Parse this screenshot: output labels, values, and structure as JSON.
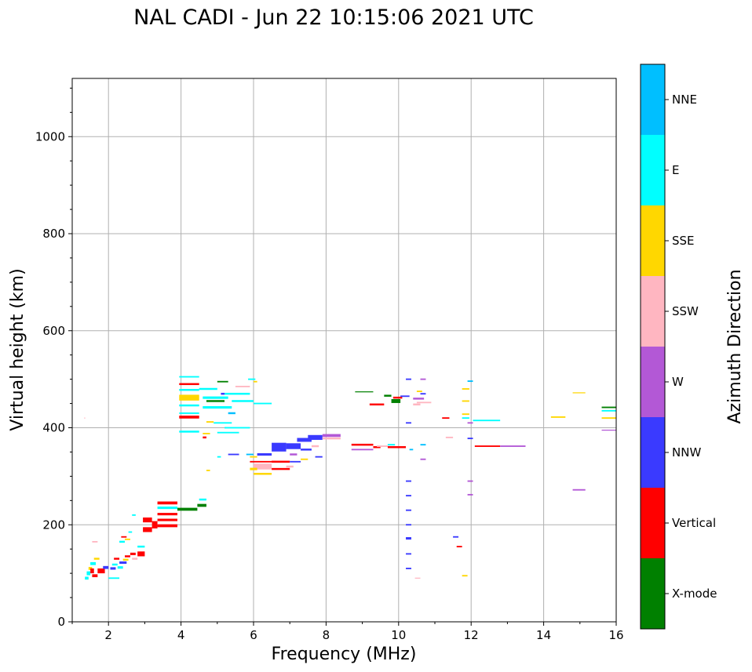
{
  "chart_data": {
    "type": "scatter",
    "title": "NAL CADI - Jun 22 10:15:06 2021 UTC",
    "xlabel": "Frequency (MHz)",
    "ylabel": "Virtual height (km)",
    "xlim": [
      1,
      16
    ],
    "ylim": [
      0,
      1120
    ],
    "xticks": [
      2,
      4,
      6,
      8,
      10,
      12,
      14,
      16
    ],
    "yticks": [
      0,
      200,
      400,
      600,
      800,
      1000
    ],
    "grid": true,
    "colorbar": {
      "label": "Azimuth Direction",
      "categories": [
        {
          "name": "X-mode",
          "color": "#008000"
        },
        {
          "name": "Vertical",
          "color": "#ff0000"
        },
        {
          "name": "NNW",
          "color": "#3a3aff"
        },
        {
          "name": "W",
          "color": "#b358d6"
        },
        {
          "name": "SSW",
          "color": "#ffb6c1"
        },
        {
          "name": "SSE",
          "color": "#ffd700"
        },
        {
          "name": "E",
          "color": "#00ffff"
        },
        {
          "name": "NNE",
          "color": "#00bfff"
        }
      ]
    },
    "echoes": [
      {
        "x0": 1.33,
        "x1": 1.36,
        "y": 420,
        "h": 2,
        "c": "SSW"
      },
      {
        "x0": 1.35,
        "x1": 1.45,
        "y": 90,
        "h": 6,
        "c": "E"
      },
      {
        "x0": 1.4,
        "x1": 1.5,
        "y": 100,
        "h": 8,
        "c": "E"
      },
      {
        "x0": 1.45,
        "x1": 1.55,
        "y": 110,
        "h": 6,
        "c": "SSE"
      },
      {
        "x0": 1.5,
        "x1": 1.6,
        "y": 105,
        "h": 10,
        "c": "Vertical"
      },
      {
        "x0": 1.5,
        "x1": 1.65,
        "y": 120,
        "h": 6,
        "c": "E"
      },
      {
        "x0": 1.55,
        "x1": 1.7,
        "y": 95,
        "h": 6,
        "c": "Vertical"
      },
      {
        "x0": 1.6,
        "x1": 1.75,
        "y": 130,
        "h": 4,
        "c": "SSE"
      },
      {
        "x0": 1.55,
        "x1": 1.7,
        "y": 165,
        "h": 3,
        "c": "SSW"
      },
      {
        "x0": 1.7,
        "x1": 1.9,
        "y": 105,
        "h": 10,
        "c": "Vertical"
      },
      {
        "x0": 1.85,
        "x1": 2.0,
        "y": 112,
        "h": 6,
        "c": "NNW"
      },
      {
        "x0": 2.0,
        "x1": 2.3,
        "y": 90,
        "h": 3,
        "c": "E"
      },
      {
        "x0": 2.05,
        "x1": 2.2,
        "y": 110,
        "h": 5,
        "c": "NNW"
      },
      {
        "x0": 2.1,
        "x1": 2.25,
        "y": 118,
        "h": 4,
        "c": "E"
      },
      {
        "x0": 2.15,
        "x1": 2.3,
        "y": 130,
        "h": 4,
        "c": "Vertical"
      },
      {
        "x0": 2.25,
        "x1": 2.4,
        "y": 112,
        "h": 5,
        "c": "E"
      },
      {
        "x0": 2.3,
        "x1": 2.5,
        "y": 122,
        "h": 5,
        "c": "NNW"
      },
      {
        "x0": 2.4,
        "x1": 2.55,
        "y": 128,
        "h": 4,
        "c": "SSE"
      },
      {
        "x0": 2.45,
        "x1": 2.6,
        "y": 135,
        "h": 4,
        "c": "Vertical"
      },
      {
        "x0": 2.3,
        "x1": 2.45,
        "y": 165,
        "h": 4,
        "c": "E"
      },
      {
        "x0": 2.35,
        "x1": 2.5,
        "y": 175,
        "h": 3,
        "c": "Vertical"
      },
      {
        "x0": 2.45,
        "x1": 2.6,
        "y": 170,
        "h": 3,
        "c": "SSE"
      },
      {
        "x0": 2.55,
        "x1": 2.65,
        "y": 185,
        "h": 3,
        "c": "E"
      },
      {
        "x0": 2.6,
        "x1": 2.75,
        "y": 140,
        "h": 5,
        "c": "Vertical"
      },
      {
        "x0": 2.65,
        "x1": 2.8,
        "y": 130,
        "h": 4,
        "c": "SSW"
      },
      {
        "x0": 2.65,
        "x1": 2.75,
        "y": 220,
        "h": 3,
        "c": "E"
      },
      {
        "x0": 2.8,
        "x1": 3.0,
        "y": 140,
        "h": 10,
        "c": "Vertical"
      },
      {
        "x0": 2.8,
        "x1": 3.0,
        "y": 155,
        "h": 4,
        "c": "E"
      },
      {
        "x0": 2.95,
        "x1": 3.2,
        "y": 190,
        "h": 10,
        "c": "Vertical"
      },
      {
        "x0": 2.95,
        "x1": 3.2,
        "y": 210,
        "h": 10,
        "c": "Vertical"
      },
      {
        "x0": 3.2,
        "x1": 3.35,
        "y": 200,
        "h": 15,
        "c": "Vertical"
      },
      {
        "x0": 3.35,
        "x1": 3.9,
        "y": 198,
        "h": 6,
        "c": "Vertical"
      },
      {
        "x0": 3.35,
        "x1": 3.9,
        "y": 210,
        "h": 5,
        "c": "Vertical"
      },
      {
        "x0": 3.35,
        "x1": 3.9,
        "y": 222,
        "h": 5,
        "c": "Vertical"
      },
      {
        "x0": 3.35,
        "x1": 3.9,
        "y": 235,
        "h": 5,
        "c": "E"
      },
      {
        "x0": 3.35,
        "x1": 3.9,
        "y": 245,
        "h": 6,
        "c": "Vertical"
      },
      {
        "x0": 3.9,
        "x1": 4.45,
        "y": 232,
        "h": 6,
        "c": "X-mode"
      },
      {
        "x0": 4.45,
        "x1": 4.7,
        "y": 240,
        "h": 6,
        "c": "X-mode"
      },
      {
        "x0": 4.5,
        "x1": 4.7,
        "y": 252,
        "h": 4,
        "c": "E"
      },
      {
        "x0": 3.95,
        "x1": 4.5,
        "y": 505,
        "h": 3,
        "c": "E"
      },
      {
        "x0": 3.95,
        "x1": 4.5,
        "y": 490,
        "h": 4,
        "c": "Vertical"
      },
      {
        "x0": 3.95,
        "x1": 4.5,
        "y": 478,
        "h": 4,
        "c": "E"
      },
      {
        "x0": 3.95,
        "x1": 4.5,
        "y": 462,
        "h": 12,
        "c": "SSE"
      },
      {
        "x0": 3.95,
        "x1": 4.5,
        "y": 446,
        "h": 4,
        "c": "E"
      },
      {
        "x0": 3.95,
        "x1": 4.5,
        "y": 422,
        "h": 6,
        "c": "Vertical"
      },
      {
        "x0": 3.95,
        "x1": 4.5,
        "y": 430,
        "h": 3,
        "c": "E"
      },
      {
        "x0": 3.95,
        "x1": 4.5,
        "y": 392,
        "h": 4,
        "c": "E"
      },
      {
        "x0": 4.5,
        "x1": 5.0,
        "y": 480,
        "h": 4,
        "c": "E"
      },
      {
        "x0": 4.6,
        "x1": 5.3,
        "y": 462,
        "h": 5,
        "c": "E"
      },
      {
        "x0": 4.7,
        "x1": 5.2,
        "y": 455,
        "h": 4,
        "c": "X-mode"
      },
      {
        "x0": 4.6,
        "x1": 5.4,
        "y": 442,
        "h": 5,
        "c": "E"
      },
      {
        "x0": 5.2,
        "x1": 5.9,
        "y": 470,
        "h": 4,
        "c": "E"
      },
      {
        "x0": 5.4,
        "x1": 6.0,
        "y": 455,
        "h": 4,
        "c": "E"
      },
      {
        "x0": 5.0,
        "x1": 5.3,
        "y": 495,
        "h": 3,
        "c": "X-mode"
      },
      {
        "x0": 5.3,
        "x1": 5.5,
        "y": 430,
        "h": 4,
        "c": "NNE"
      },
      {
        "x0": 5.5,
        "x1": 5.9,
        "y": 485,
        "h": 3,
        "c": "SSW"
      },
      {
        "x0": 5.1,
        "x1": 5.2,
        "y": 470,
        "h": 4,
        "c": "NNW"
      },
      {
        "x0": 4.9,
        "x1": 5.4,
        "y": 410,
        "h": 3,
        "c": "E"
      },
      {
        "x0": 5.2,
        "x1": 5.9,
        "y": 400,
        "h": 3,
        "c": "E"
      },
      {
        "x0": 5.0,
        "x1": 5.6,
        "y": 390,
        "h": 3,
        "c": "E"
      },
      {
        "x0": 4.7,
        "x1": 4.9,
        "y": 412,
        "h": 3,
        "c": "SSE"
      },
      {
        "x0": 4.6,
        "x1": 4.8,
        "y": 388,
        "h": 3,
        "c": "SSE"
      },
      {
        "x0": 4.6,
        "x1": 4.7,
        "y": 380,
        "h": 4,
        "c": "Vertical"
      },
      {
        "x0": 6.0,
        "x1": 6.5,
        "y": 450,
        "h": 3,
        "c": "E"
      },
      {
        "x0": 6.0,
        "x1": 6.1,
        "y": 495,
        "h": 3,
        "c": "SSE"
      },
      {
        "x0": 5.85,
        "x1": 6.05,
        "y": 500,
        "h": 3,
        "c": "E"
      },
      {
        "x0": 4.7,
        "x1": 4.8,
        "y": 312,
        "h": 3,
        "c": "SSE"
      },
      {
        "x0": 5.0,
        "x1": 5.1,
        "y": 340,
        "h": 3,
        "c": "E"
      },
      {
        "x0": 5.3,
        "x1": 5.6,
        "y": 345,
        "h": 3,
        "c": "NNW"
      },
      {
        "x0": 5.8,
        "x1": 6.0,
        "y": 345,
        "h": 3,
        "c": "NNE"
      },
      {
        "x0": 6.1,
        "x1": 6.5,
        "y": 345,
        "h": 5,
        "c": "NNW"
      },
      {
        "x0": 5.9,
        "x1": 6.1,
        "y": 340,
        "h": 3,
        "c": "SSE"
      },
      {
        "x0": 5.9,
        "x1": 6.6,
        "y": 330,
        "h": 3,
        "c": "Vertical"
      },
      {
        "x0": 6.0,
        "x1": 6.5,
        "y": 320,
        "h": 12,
        "c": "SSW"
      },
      {
        "x0": 6.0,
        "x1": 6.5,
        "y": 305,
        "h": 4,
        "c": "SSE"
      },
      {
        "x0": 5.9,
        "x1": 6.1,
        "y": 315,
        "h": 5,
        "c": "SSE"
      },
      {
        "x0": 6.5,
        "x1": 7.0,
        "y": 330,
        "h": 4,
        "c": "Vertical"
      },
      {
        "x0": 6.5,
        "x1": 7.0,
        "y": 315,
        "h": 4,
        "c": "Vertical"
      },
      {
        "x0": 6.5,
        "x1": 6.9,
        "y": 360,
        "h": 18,
        "c": "NNW"
      },
      {
        "x0": 6.9,
        "x1": 7.3,
        "y": 362,
        "h": 12,
        "c": "NNW"
      },
      {
        "x0": 7.0,
        "x1": 7.2,
        "y": 345,
        "h": 4,
        "c": "W"
      },
      {
        "x0": 7.0,
        "x1": 7.3,
        "y": 330,
        "h": 3,
        "c": "NNW"
      },
      {
        "x0": 6.9,
        "x1": 7.1,
        "y": 320,
        "h": 4,
        "c": "SSW"
      },
      {
        "x0": 7.2,
        "x1": 7.6,
        "y": 375,
        "h": 8,
        "c": "NNW"
      },
      {
        "x0": 7.3,
        "x1": 7.6,
        "y": 355,
        "h": 4,
        "c": "NNW"
      },
      {
        "x0": 7.3,
        "x1": 7.5,
        "y": 335,
        "h": 3,
        "c": "SSE"
      },
      {
        "x0": 7.5,
        "x1": 7.9,
        "y": 380,
        "h": 10,
        "c": "NNW"
      },
      {
        "x0": 7.6,
        "x1": 7.8,
        "y": 362,
        "h": 4,
        "c": "SSW"
      },
      {
        "x0": 7.7,
        "x1": 7.9,
        "y": 340,
        "h": 3,
        "c": "NNW"
      },
      {
        "x0": 7.9,
        "x1": 8.4,
        "y": 384,
        "h": 6,
        "c": "W"
      },
      {
        "x0": 7.9,
        "x1": 8.4,
        "y": 378,
        "h": 4,
        "c": "SSW"
      },
      {
        "x0": 8.7,
        "x1": 9.3,
        "y": 365,
        "h": 4,
        "c": "Vertical"
      },
      {
        "x0": 8.7,
        "x1": 9.3,
        "y": 355,
        "h": 3,
        "c": "W"
      },
      {
        "x0": 9.3,
        "x1": 9.5,
        "y": 360,
        "h": 4,
        "c": "Vertical"
      },
      {
        "x0": 9.4,
        "x1": 9.7,
        "y": 362,
        "h": 3,
        "c": "SSW"
      },
      {
        "x0": 9.7,
        "x1": 10.2,
        "y": 360,
        "h": 4,
        "c": "Vertical"
      },
      {
        "x0": 9.7,
        "x1": 9.9,
        "y": 365,
        "h": 3,
        "c": "E"
      },
      {
        "x0": 8.8,
        "x1": 9.3,
        "y": 474,
        "h": 2,
        "c": "X-mode"
      },
      {
        "x0": 9.2,
        "x1": 9.6,
        "y": 448,
        "h": 4,
        "c": "Vertical"
      },
      {
        "x0": 9.6,
        "x1": 9.8,
        "y": 466,
        "h": 4,
        "c": "X-mode"
      },
      {
        "x0": 9.8,
        "x1": 10.05,
        "y": 455,
        "h": 8,
        "c": "X-mode"
      },
      {
        "x0": 9.85,
        "x1": 10.1,
        "y": 462,
        "h": 4,
        "c": "Vertical"
      },
      {
        "x0": 10.05,
        "x1": 10.3,
        "y": 465,
        "h": 3,
        "c": "NNW"
      },
      {
        "x0": 10.4,
        "x1": 10.7,
        "y": 460,
        "h": 4,
        "c": "W"
      },
      {
        "x0": 10.4,
        "x1": 10.6,
        "y": 448,
        "h": 4,
        "c": "SSW"
      },
      {
        "x0": 10.5,
        "x1": 10.9,
        "y": 452,
        "h": 3,
        "c": "SSW"
      },
      {
        "x0": 10.2,
        "x1": 10.35,
        "y": 500,
        "h": 3,
        "c": "NNW"
      },
      {
        "x0": 10.6,
        "x1": 10.75,
        "y": 500,
        "h": 3,
        "c": "W"
      },
      {
        "x0": 10.6,
        "x1": 10.75,
        "y": 470,
        "h": 3,
        "c": "NNW"
      },
      {
        "x0": 10.5,
        "x1": 10.65,
        "y": 475,
        "h": 3,
        "c": "SSE"
      },
      {
        "x0": 10.2,
        "x1": 10.35,
        "y": 410,
        "h": 3,
        "c": "NNW"
      },
      {
        "x0": 10.6,
        "x1": 10.75,
        "y": 365,
        "h": 3,
        "c": "NNE"
      },
      {
        "x0": 10.6,
        "x1": 10.75,
        "y": 335,
        "h": 3,
        "c": "W"
      },
      {
        "x0": 10.3,
        "x1": 10.4,
        "y": 355,
        "h": 3,
        "c": "NNE"
      },
      {
        "x0": 10.2,
        "x1": 10.35,
        "y": 290,
        "h": 3,
        "c": "NNW"
      },
      {
        "x0": 10.2,
        "x1": 10.35,
        "y": 260,
        "h": 3,
        "c": "NNW"
      },
      {
        "x0": 10.2,
        "x1": 10.35,
        "y": 230,
        "h": 3,
        "c": "NNW"
      },
      {
        "x0": 10.2,
        "x1": 10.35,
        "y": 200,
        "h": 3,
        "c": "NNW"
      },
      {
        "x0": 10.2,
        "x1": 10.35,
        "y": 172,
        "h": 5,
        "c": "NNW"
      },
      {
        "x0": 10.2,
        "x1": 10.35,
        "y": 140,
        "h": 3,
        "c": "NNW"
      },
      {
        "x0": 10.2,
        "x1": 10.35,
        "y": 110,
        "h": 3,
        "c": "NNW"
      },
      {
        "x0": 10.45,
        "x1": 10.6,
        "y": 90,
        "h": 2,
        "c": "SSW"
      },
      {
        "x0": 11.2,
        "x1": 11.4,
        "y": 420,
        "h": 3,
        "c": "Vertical"
      },
      {
        "x0": 11.3,
        "x1": 11.5,
        "y": 380,
        "h": 3,
        "c": "SSW"
      },
      {
        "x0": 11.5,
        "x1": 11.65,
        "y": 175,
        "h": 3,
        "c": "NNW"
      },
      {
        "x0": 11.6,
        "x1": 11.75,
        "y": 155,
        "h": 3,
        "c": "Vertical"
      },
      {
        "x0": 11.75,
        "x1": 11.9,
        "y": 95,
        "h": 3,
        "c": "SSE"
      },
      {
        "x0": 11.75,
        "x1": 11.95,
        "y": 480,
        "h": 3,
        "c": "SSE"
      },
      {
        "x0": 11.75,
        "x1": 11.95,
        "y": 455,
        "h": 3,
        "c": "SSE"
      },
      {
        "x0": 11.75,
        "x1": 11.95,
        "y": 428,
        "h": 3,
        "c": "SSE"
      },
      {
        "x0": 11.75,
        "x1": 11.95,
        "y": 420,
        "h": 3,
        "c": "E"
      },
      {
        "x0": 11.9,
        "x1": 12.05,
        "y": 496,
        "h": 3,
        "c": "NNE"
      },
      {
        "x0": 11.9,
        "x1": 12.05,
        "y": 410,
        "h": 3,
        "c": "W"
      },
      {
        "x0": 11.9,
        "x1": 12.05,
        "y": 378,
        "h": 3,
        "c": "NNW"
      },
      {
        "x0": 11.9,
        "x1": 12.05,
        "y": 290,
        "h": 3,
        "c": "W"
      },
      {
        "x0": 11.9,
        "x1": 12.05,
        "y": 262,
        "h": 3,
        "c": "W"
      },
      {
        "x0": 12.05,
        "x1": 12.8,
        "y": 415,
        "h": 3,
        "c": "E"
      },
      {
        "x0": 12.1,
        "x1": 12.8,
        "y": 362,
        "h": 3,
        "c": "Vertical"
      },
      {
        "x0": 12.8,
        "x1": 13.5,
        "y": 362,
        "h": 3,
        "c": "W"
      },
      {
        "x0": 14.2,
        "x1": 14.6,
        "y": 422,
        "h": 3,
        "c": "SSE"
      },
      {
        "x0": 14.8,
        "x1": 15.15,
        "y": 472,
        "h": 2,
        "c": "SSE"
      },
      {
        "x0": 14.8,
        "x1": 15.15,
        "y": 272,
        "h": 3,
        "c": "W"
      },
      {
        "x0": 15.6,
        "x1": 16.0,
        "y": 442,
        "h": 3,
        "c": "X-mode"
      },
      {
        "x0": 15.6,
        "x1": 16.0,
        "y": 435,
        "h": 3,
        "c": "E"
      },
      {
        "x0": 15.6,
        "x1": 16.0,
        "y": 420,
        "h": 3,
        "c": "SSE"
      },
      {
        "x0": 15.6,
        "x1": 16.0,
        "y": 395,
        "h": 2,
        "c": "W"
      }
    ]
  }
}
